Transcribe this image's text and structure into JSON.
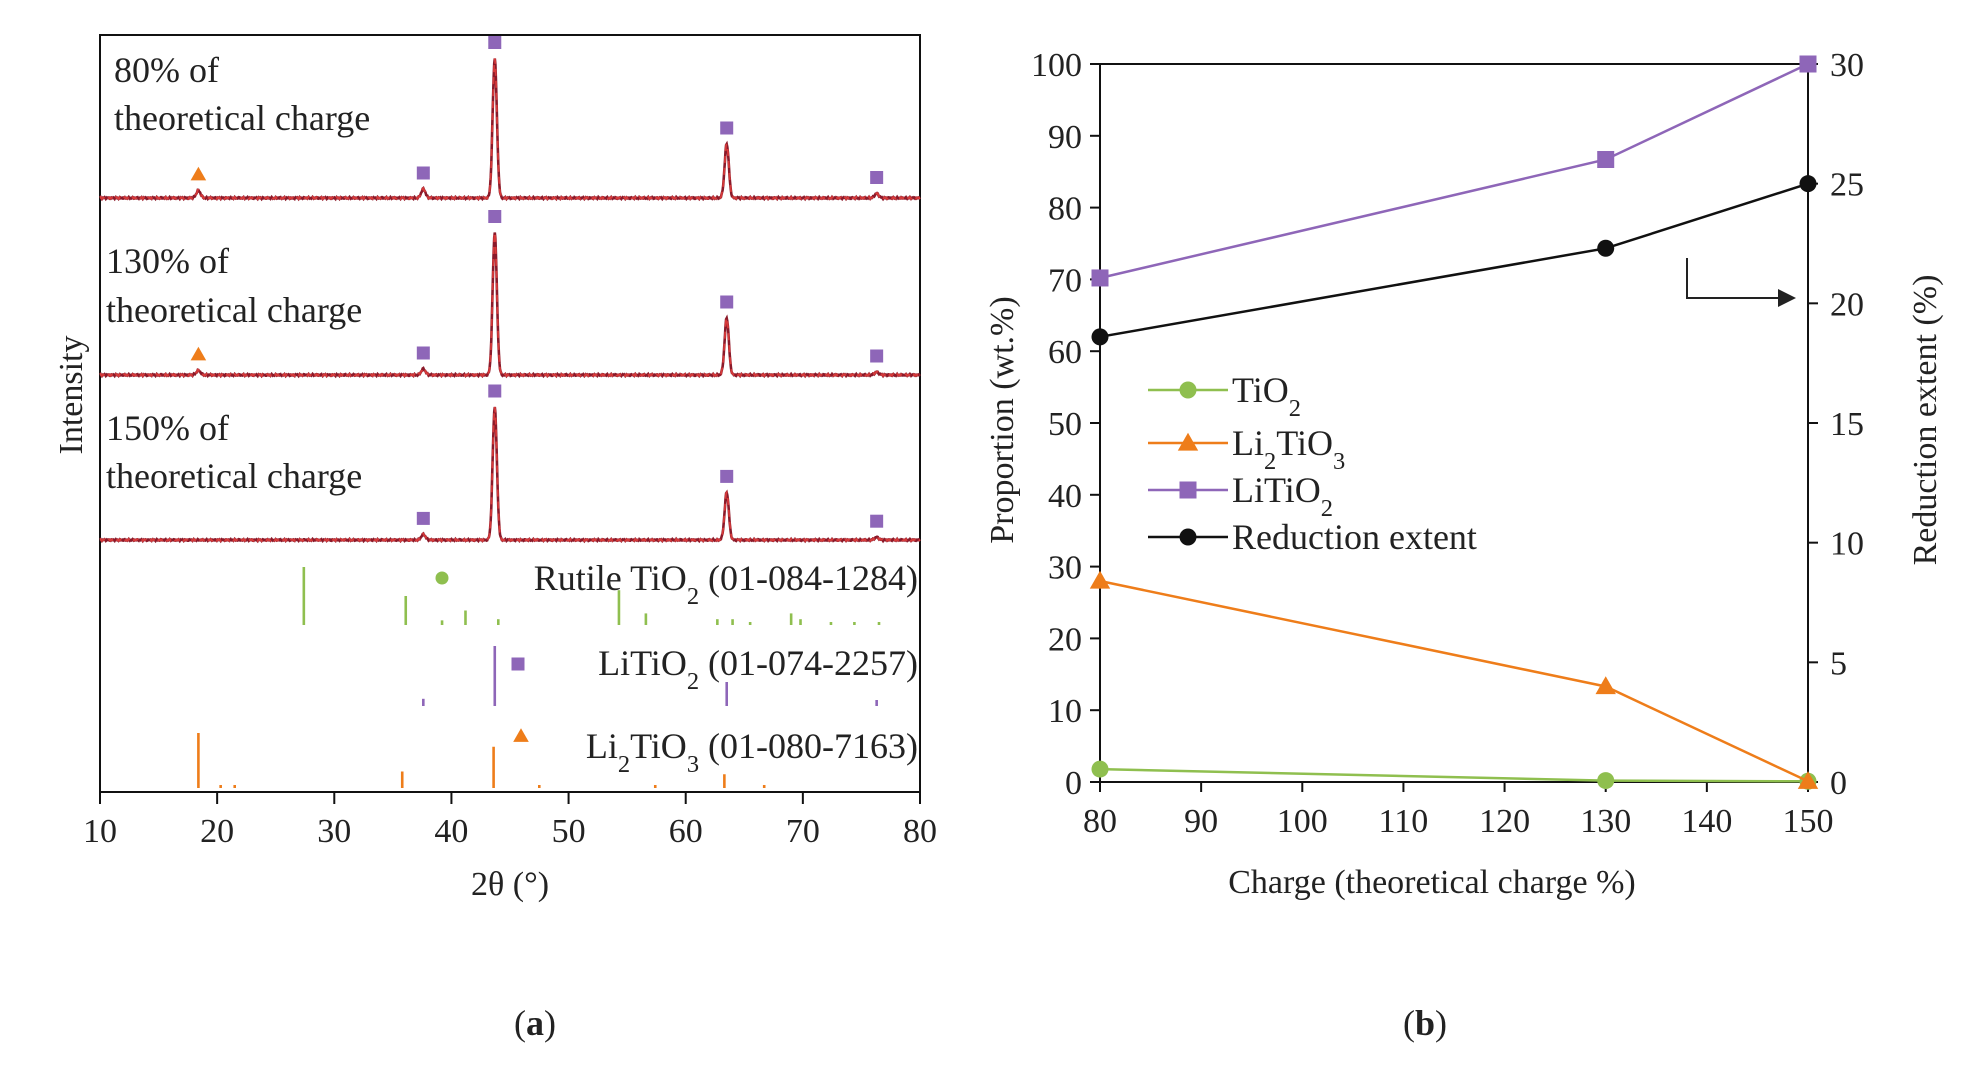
{
  "chart_data": [
    {
      "type": "line",
      "panel_label": "a",
      "title": "",
      "xlabel": "2θ (°)",
      "ylabel": "Intensity",
      "xlim": [
        10,
        80
      ],
      "xticks": [
        "10",
        "20",
        "30",
        "40",
        "50",
        "60",
        "70",
        "80"
      ],
      "grid": false,
      "patterns": [
        {
          "name": "80% of theoretical charge",
          "label_lines": [
            "80% of",
            "theoretical charge"
          ],
          "peaks": [
            {
              "x": 18.4,
              "h": 0.05,
              "marker": "triangle"
            },
            {
              "x": 37.6,
              "h": 0.06,
              "marker": "square"
            },
            {
              "x": 43.7,
              "h": 0.93,
              "marker": "square"
            },
            {
              "x": 63.5,
              "h": 0.36,
              "marker": "square"
            },
            {
              "x": 76.3,
              "h": 0.03,
              "marker": "square"
            }
          ]
        },
        {
          "name": "130% of theoretical charge",
          "label_lines": [
            "130% of",
            "theoretical charge"
          ],
          "peaks": [
            {
              "x": 18.4,
              "h": 0.03,
              "marker": "triangle"
            },
            {
              "x": 37.6,
              "h": 0.04,
              "marker": "square"
            },
            {
              "x": 43.7,
              "h": 0.95,
              "marker": "square"
            },
            {
              "x": 63.5,
              "h": 0.38,
              "marker": "square"
            },
            {
              "x": 76.3,
              "h": 0.02,
              "marker": "square"
            }
          ]
        },
        {
          "name": "150% of theoretical charge",
          "label_lines": [
            "150% of",
            "theoretical charge"
          ],
          "peaks": [
            {
              "x": 37.6,
              "h": 0.04,
              "marker": "square"
            },
            {
              "x": 43.7,
              "h": 0.95,
              "marker": "square"
            },
            {
              "x": 63.5,
              "h": 0.34,
              "marker": "square"
            },
            {
              "x": 76.3,
              "h": 0.02,
              "marker": "square"
            }
          ]
        }
      ],
      "references": [
        {
          "name": "Rutile TiO2 (01-084-1284)",
          "label": {
            "prefix": "Rutile TiO",
            "sub": "2",
            "suffix": " (01-084-1284)"
          },
          "marker": "circle",
          "sticks": [
            {
              "x": 27.4,
              "h": 1.0
            },
            {
              "x": 36.1,
              "h": 0.5
            },
            {
              "x": 39.2,
              "h": 0.08
            },
            {
              "x": 41.2,
              "h": 0.25
            },
            {
              "x": 44.0,
              "h": 0.1
            },
            {
              "x": 54.3,
              "h": 0.6
            },
            {
              "x": 56.6,
              "h": 0.2
            },
            {
              "x": 62.7,
              "h": 0.1
            },
            {
              "x": 64.0,
              "h": 0.1
            },
            {
              "x": 65.5,
              "h": 0.05
            },
            {
              "x": 69.0,
              "h": 0.2
            },
            {
              "x": 69.8,
              "h": 0.1
            },
            {
              "x": 72.4,
              "h": 0.04
            },
            {
              "x": 74.4,
              "h": 0.03
            },
            {
              "x": 76.5,
              "h": 0.04
            }
          ]
        },
        {
          "name": "LiTiO2 (01-074-2257)",
          "label": {
            "prefix": "LiTiO",
            "sub": "2",
            "suffix": " (01-074-2257)"
          },
          "marker": "square",
          "sticks": [
            {
              "x": 37.6,
              "h": 0.12
            },
            {
              "x": 43.7,
              "h": 1.0
            },
            {
              "x": 63.5,
              "h": 0.4
            },
            {
              "x": 76.3,
              "h": 0.1
            }
          ]
        },
        {
          "name": "Li2TiO3 (01-080-7163)",
          "label": {
            "prefix": "Li",
            "sub": "2",
            "mid": "TiO",
            "sub2": "3",
            "suffix": " (01-080-7163)"
          },
          "marker": "triangle",
          "sticks": [
            {
              "x": 18.4,
              "h": 1.0
            },
            {
              "x": 20.3,
              "h": 0.04
            },
            {
              "x": 21.5,
              "h": 0.03
            },
            {
              "x": 35.8,
              "h": 0.3
            },
            {
              "x": 43.6,
              "h": 0.75
            },
            {
              "x": 47.5,
              "h": 0.05
            },
            {
              "x": 57.4,
              "h": 0.05
            },
            {
              "x": 63.3,
              "h": 0.25
            },
            {
              "x": 66.7,
              "h": 0.05
            }
          ]
        }
      ],
      "colors": {
        "trace": "#8b1a2a",
        "fit": "#d63a3a",
        "TiO2": "#8fbf4f",
        "LiTiO2": "#8e66b8",
        "Li2TiO3": "#ee7d1a"
      }
    },
    {
      "type": "line",
      "panel_label": "b",
      "title": "",
      "xlabel": "Charge (theoretical charge %)",
      "ylabel": "Proportion (wt.%)",
      "y2label": "Reduction extent (%)",
      "xlim": [
        80,
        150
      ],
      "ylim": [
        0,
        100
      ],
      "y2lim": [
        0,
        30
      ],
      "xticks": [
        80,
        90,
        100,
        110,
        120,
        130,
        140,
        150
      ],
      "yticks": [
        0,
        10,
        20,
        30,
        40,
        50,
        60,
        70,
        80,
        90,
        100
      ],
      "y2ticks": [
        0,
        5,
        10,
        15,
        20,
        25,
        30
      ],
      "x": [
        80,
        130,
        150
      ],
      "series": [
        {
          "name": "TiO2",
          "label": {
            "prefix": "TiO",
            "sub": "2",
            "suffix": ""
          },
          "marker": "circle",
          "color": "#8fbf4f",
          "axis": "left",
          "values": [
            1.8,
            0.2,
            0.1
          ]
        },
        {
          "name": "Li2TiO3",
          "label": {
            "prefix": "Li",
            "sub": "2",
            "mid": "TiO",
            "sub2": "3",
            "suffix": ""
          },
          "marker": "triangle",
          "color": "#ee7d1a",
          "axis": "left",
          "values": [
            28.0,
            13.3,
            0.1
          ]
        },
        {
          "name": "LiTiO2",
          "label": {
            "prefix": "LiTiO",
            "sub": "2",
            "suffix": ""
          },
          "marker": "square",
          "color": "#8e66b8",
          "axis": "left",
          "values": [
            70.2,
            86.7,
            100.0
          ]
        },
        {
          "name": "Reduction extent",
          "label": {
            "prefix": "Reduction extent",
            "sub": "",
            "suffix": ""
          },
          "marker": "circle",
          "color": "#111111",
          "axis": "right",
          "values": [
            18.6,
            22.3,
            25.0
          ]
        }
      ],
      "legend_position": "middle-left",
      "annotation": "arrow pointing to right axis"
    }
  ]
}
